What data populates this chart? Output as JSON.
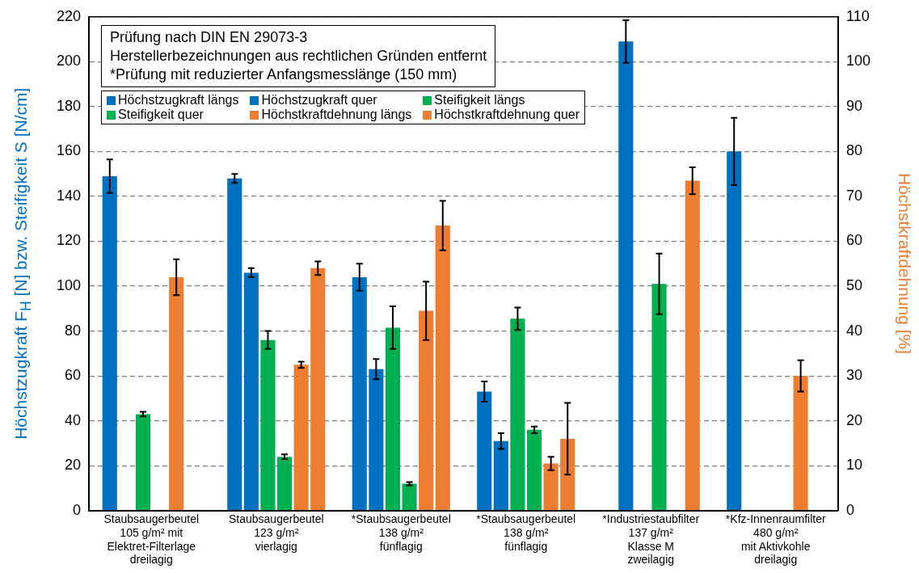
{
  "chart_data": {
    "type": "bar",
    "ylabel": "Höchstzugkraft F$_{H}$ [N] bzw. Steifigkeit S [N/cm]",
    "y2label": "Höchstkraftdehnung [%]",
    "categories": [
      "Staubsaugerbeutel\n105 g/m² mit\nElektret-Filterlage\ndreilagig",
      "Staubsaugerbeutel\n123 g/m²\nvierlagig",
      "*Staubsaugerbeutel\n138 g/m²\nfünflagig",
      "*Staubsaugerbeutel\n138 g/m²\nfünflagig",
      "*Industriestaubfilter\n137 g/m²\nKlasse M\nzweilagig",
      "*Kfz-Innenraumfilter\n480 g/m²\nmit Aktivkohle\ndreilagig"
    ],
    "series": [
      {
        "name": "Höchstzugkraft längs",
        "color": "#0070c0",
        "values": [
          149,
          148,
          104,
          53,
          null,
          160
        ],
        "errors": [
          7.5,
          2,
          6,
          4.5,
          null,
          15
        ]
      },
      {
        "name": "Höchstzugkraft quer",
        "color": "#0070c0",
        "values": [
          null,
          106,
          63,
          31,
          209,
          null
        ],
        "errors": [
          null,
          2,
          4.5,
          3.5,
          9.5,
          null
        ]
      },
      {
        "name": "Steifigkeit längs",
        "color": "#00b050",
        "values": [
          43,
          76,
          81.5,
          85.5,
          null,
          null
        ],
        "errors": [
          1,
          4,
          9.5,
          5,
          null,
          null
        ]
      },
      {
        "name": "Steifigkeit quer",
        "color": "#00b050",
        "values": [
          null,
          24,
          12,
          36,
          101,
          null
        ],
        "errors": [
          null,
          1,
          0.7,
          1.5,
          13.5,
          null
        ]
      },
      {
        "name": "Höchstkraftdehnung längs",
        "color": "#ed7d31",
        "axis": "y2",
        "values": [
          52,
          32.5,
          44.5,
          10.5,
          null,
          30
        ],
        "errors": [
          4,
          0.7,
          6.5,
          1.5,
          null,
          3.5
        ]
      },
      {
        "name": "Höchstkraftdehnung quer",
        "color": "#ed7d31",
        "axis": "y2",
        "values": [
          null,
          54,
          63.5,
          16,
          73.5,
          null
        ],
        "errors": [
          null,
          1.5,
          5.5,
          8,
          3,
          null
        ]
      }
    ],
    "ylim": [
      0,
      220
    ],
    "yticks": [
      0,
      20,
      40,
      60,
      80,
      100,
      120,
      140,
      160,
      180,
      200,
      220
    ],
    "y2lim": [
      0,
      110
    ],
    "y2ticks": [
      0,
      10,
      20,
      30,
      40,
      50,
      60,
      70,
      80,
      90,
      100,
      110
    ],
    "grid": "y",
    "legend": "top left",
    "annotations": [
      "Prüfung nach DIN EN 29073-3",
      "Herstellerbezeichnungen aus rechtlichen Gründen entfernt",
      "*Prüfung mit reduzierter Anfangsmesslänge (150 mm)"
    ]
  }
}
